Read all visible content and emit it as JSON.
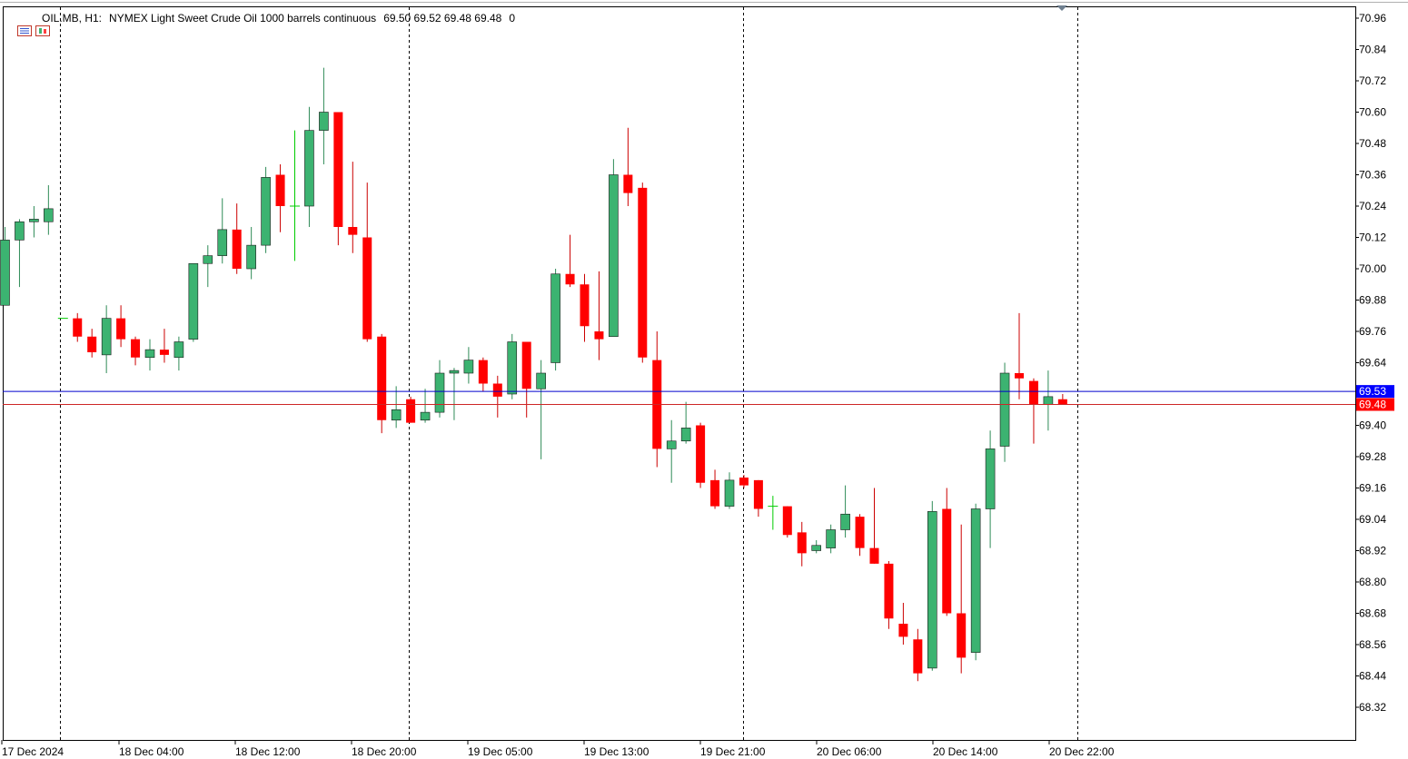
{
  "header": {
    "symbol": "OIL.MB, H1:",
    "description": "NYMEX Light Sweet Crude Oil 1000 barrels continuous",
    "ohlc": "69.50 69.52 69.48 69.48",
    "volume": "0"
  },
  "price_labels": {
    "ask": "69.53",
    "bid": "69.48"
  },
  "colors": {
    "bull": "#3cb371",
    "bear": "#ff0000",
    "doji": "#00cc00",
    "ask_line": "#0000cd",
    "bid_line": "#cd2626",
    "ask_label_bg": "#0000ff",
    "bid_label_bg": "#ff0000"
  },
  "icons": [
    "chart-menu-icon",
    "chart-window-icon",
    "collapse-triangle-icon"
  ],
  "chart_data": {
    "type": "candlestick",
    "title": "OIL.MB, H1: NYMEX Light Sweet Crude Oil 1000 barrels continuous",
    "ylim": [
      68.2,
      71.0
    ],
    "y_ticks": [
      "70.96",
      "70.84",
      "70.72",
      "70.60",
      "70.48",
      "70.36",
      "70.24",
      "70.12",
      "70.00",
      "69.88",
      "69.76",
      "69.64",
      "69.52",
      "69.40",
      "69.28",
      "69.16",
      "69.04",
      "68.92",
      "68.80",
      "68.68",
      "68.56",
      "68.44",
      "68.32"
    ],
    "x_ticks": [
      "17 Dec 2024",
      "18 Dec 04:00",
      "18 Dec 12:00",
      "18 Dec 20:00",
      "19 Dec 05:00",
      "19 Dec 13:00",
      "19 Dec 21:00",
      "20 Dec 06:00",
      "20 Dec 14:00",
      "20 Dec 22:00"
    ],
    "grid": "off",
    "ask": 69.53,
    "bid": 69.48,
    "candles": [
      {
        "o": 69.86,
        "h": 70.16,
        "l": 69.86,
        "c": 70.11
      },
      {
        "o": 70.11,
        "h": 70.19,
        "l": 69.93,
        "c": 70.18
      },
      {
        "o": 70.18,
        "h": 70.24,
        "l": 70.12,
        "c": 70.19
      },
      {
        "o": 70.18,
        "h": 70.32,
        "l": 70.13,
        "c": 70.23
      },
      {
        "o": 69.81,
        "h": 69.81,
        "l": 69.81,
        "c": 69.81
      },
      {
        "o": 69.81,
        "h": 69.83,
        "l": 69.72,
        "c": 69.74
      },
      {
        "o": 69.74,
        "h": 69.77,
        "l": 69.66,
        "c": 69.68
      },
      {
        "o": 69.67,
        "h": 69.86,
        "l": 69.6,
        "c": 69.81
      },
      {
        "o": 69.81,
        "h": 69.86,
        "l": 69.7,
        "c": 69.73
      },
      {
        "o": 69.73,
        "h": 69.74,
        "l": 69.63,
        "c": 69.66
      },
      {
        "o": 69.66,
        "h": 69.73,
        "l": 69.61,
        "c": 69.69
      },
      {
        "o": 69.69,
        "h": 69.77,
        "l": 69.64,
        "c": 69.67
      },
      {
        "o": 69.66,
        "h": 69.74,
        "l": 69.61,
        "c": 69.72
      },
      {
        "o": 69.73,
        "h": 70.02,
        "l": 69.72,
        "c": 70.02
      },
      {
        "o": 70.02,
        "h": 70.09,
        "l": 69.93,
        "c": 70.05
      },
      {
        "o": 70.05,
        "h": 70.27,
        "l": 70.02,
        "c": 70.15
      },
      {
        "o": 70.15,
        "h": 70.25,
        "l": 69.98,
        "c": 70.0
      },
      {
        "o": 70.0,
        "h": 70.16,
        "l": 69.96,
        "c": 70.09
      },
      {
        "o": 70.09,
        "h": 70.39,
        "l": 70.06,
        "c": 70.35
      },
      {
        "o": 70.36,
        "h": 70.4,
        "l": 70.14,
        "c": 70.24
      },
      {
        "o": 70.24,
        "h": 70.53,
        "l": 70.03,
        "c": 70.24
      },
      {
        "o": 70.24,
        "h": 70.62,
        "l": 70.16,
        "c": 70.53
      },
      {
        "o": 70.53,
        "h": 70.77,
        "l": 70.4,
        "c": 70.6
      },
      {
        "o": 70.6,
        "h": 70.6,
        "l": 70.09,
        "c": 70.16
      },
      {
        "o": 70.16,
        "h": 70.41,
        "l": 70.06,
        "c": 70.13
      },
      {
        "o": 70.12,
        "h": 70.33,
        "l": 69.72,
        "c": 69.73
      },
      {
        "o": 69.74,
        "h": 69.75,
        "l": 69.37,
        "c": 69.42
      },
      {
        "o": 69.42,
        "h": 69.55,
        "l": 69.39,
        "c": 69.46
      },
      {
        "o": 69.5,
        "h": 69.51,
        "l": 69.41,
        "c": 69.41
      },
      {
        "o": 69.42,
        "h": 69.54,
        "l": 69.41,
        "c": 69.45
      },
      {
        "o": 69.45,
        "h": 69.65,
        "l": 69.43,
        "c": 69.6
      },
      {
        "o": 69.6,
        "h": 69.62,
        "l": 69.42,
        "c": 69.61
      },
      {
        "o": 69.6,
        "h": 69.7,
        "l": 69.56,
        "c": 69.65
      },
      {
        "o": 69.65,
        "h": 69.66,
        "l": 69.53,
        "c": 69.56
      },
      {
        "o": 69.56,
        "h": 69.59,
        "l": 69.43,
        "c": 69.51
      },
      {
        "o": 69.52,
        "h": 69.75,
        "l": 69.5,
        "c": 69.72
      },
      {
        "o": 69.72,
        "h": 69.72,
        "l": 69.43,
        "c": 69.54
      },
      {
        "o": 69.54,
        "h": 69.65,
        "l": 69.27,
        "c": 69.6
      },
      {
        "o": 69.64,
        "h": 70.0,
        "l": 69.61,
        "c": 69.98
      },
      {
        "o": 69.98,
        "h": 70.13,
        "l": 69.93,
        "c": 69.94
      },
      {
        "o": 69.94,
        "h": 69.98,
        "l": 69.72,
        "c": 69.78
      },
      {
        "o": 69.76,
        "h": 69.99,
        "l": 69.65,
        "c": 69.73
      },
      {
        "o": 69.74,
        "h": 70.42,
        "l": 69.74,
        "c": 70.36
      },
      {
        "o": 70.36,
        "h": 70.54,
        "l": 70.24,
        "c": 70.29
      },
      {
        "o": 70.31,
        "h": 70.33,
        "l": 69.64,
        "c": 69.66
      },
      {
        "o": 69.65,
        "h": 69.76,
        "l": 69.24,
        "c": 69.31
      },
      {
        "o": 69.31,
        "h": 69.42,
        "l": 69.18,
        "c": 69.34
      },
      {
        "o": 69.34,
        "h": 69.49,
        "l": 69.33,
        "c": 69.39
      },
      {
        "o": 69.4,
        "h": 69.41,
        "l": 69.16,
        "c": 69.18
      },
      {
        "o": 69.19,
        "h": 69.23,
        "l": 69.08,
        "c": 69.09
      },
      {
        "o": 69.09,
        "h": 69.22,
        "l": 69.08,
        "c": 69.19
      },
      {
        "o": 69.2,
        "h": 69.21,
        "l": 69.16,
        "c": 69.17
      },
      {
        "o": 69.19,
        "h": 69.19,
        "l": 69.05,
        "c": 69.08
      },
      {
        "o": 69.09,
        "h": 69.13,
        "l": 69.0,
        "c": 69.09
      },
      {
        "o": 69.09,
        "h": 69.09,
        "l": 68.97,
        "c": 68.98
      },
      {
        "o": 68.99,
        "h": 69.03,
        "l": 68.86,
        "c": 68.91
      },
      {
        "o": 68.92,
        "h": 68.96,
        "l": 68.91,
        "c": 68.94
      },
      {
        "o": 68.93,
        "h": 69.02,
        "l": 68.91,
        "c": 69.0
      },
      {
        "o": 69.0,
        "h": 69.17,
        "l": 68.97,
        "c": 69.06
      },
      {
        "o": 69.05,
        "h": 69.06,
        "l": 68.9,
        "c": 68.93
      },
      {
        "o": 68.93,
        "h": 69.16,
        "l": 68.87,
        "c": 68.87
      },
      {
        "o": 68.87,
        "h": 68.88,
        "l": 68.62,
        "c": 68.66
      },
      {
        "o": 68.64,
        "h": 68.72,
        "l": 68.56,
        "c": 68.59
      },
      {
        "o": 68.58,
        "h": 68.62,
        "l": 68.42,
        "c": 68.45
      },
      {
        "o": 68.47,
        "h": 69.11,
        "l": 68.46,
        "c": 69.07
      },
      {
        "o": 69.08,
        "h": 69.16,
        "l": 68.67,
        "c": 68.68
      },
      {
        "o": 68.68,
        "h": 69.02,
        "l": 68.45,
        "c": 68.51
      },
      {
        "o": 68.53,
        "h": 69.1,
        "l": 68.5,
        "c": 69.08
      },
      {
        "o": 69.08,
        "h": 69.38,
        "l": 68.93,
        "c": 69.31
      },
      {
        "o": 69.32,
        "h": 69.64,
        "l": 69.26,
        "c": 69.6
      },
      {
        "o": 69.6,
        "h": 69.83,
        "l": 69.5,
        "c": 69.58
      },
      {
        "o": 69.57,
        "h": 69.58,
        "l": 69.33,
        "c": 69.48
      },
      {
        "o": 69.48,
        "h": 69.61,
        "l": 69.38,
        "c": 69.51
      },
      {
        "o": 69.5,
        "h": 69.52,
        "l": 69.48,
        "c": 69.48
      }
    ]
  }
}
